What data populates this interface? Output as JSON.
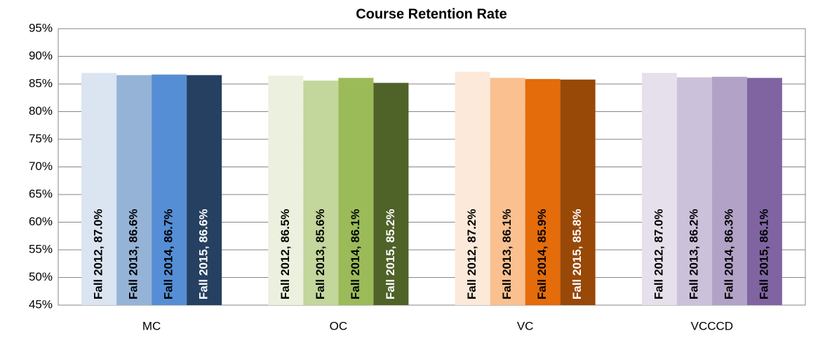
{
  "chart_data": {
    "type": "bar",
    "title": "Course Retention Rate",
    "categories": [
      "MC",
      "OC",
      "VC",
      "VCCCD"
    ],
    "series": [
      {
        "colors": [
          "#dbe5f1",
          "#ebf1de",
          "#fde9d9",
          "#e6e0ec"
        ],
        "values": [
          87.0,
          86.5,
          87.2,
          87.0
        ],
        "value_labels": [
          "Fall 2012, 87.0%",
          "Fall 2012, 86.5%",
          "Fall 2012, 87.2%",
          "Fall 2012, 87.0%"
        ]
      },
      {
        "colors": [
          "#95b3d7",
          "#c3d69b",
          "#fac090",
          "#ccc1da"
        ],
        "values": [
          86.6,
          85.6,
          86.1,
          86.2
        ],
        "value_labels": [
          "Fall 2013, 86.6%",
          "Fall 2013, 85.6%",
          "Fall 2013, 86.1%",
          "Fall 2013, 86.2%"
        ]
      },
      {
        "colors": [
          "#558ed5",
          "#9bbb59",
          "#e46c0a",
          "#b3a2c7"
        ],
        "values": [
          86.7,
          86.1,
          85.9,
          86.3
        ],
        "value_labels": [
          "Fall 2014, 86.7%",
          "Fall 2014, 86.1%",
          "Fall 2014, 85.9%",
          "Fall 2014, 86.3%"
        ]
      },
      {
        "colors": [
          "#254061",
          "#4f6228",
          "#984807",
          "#8064a2"
        ],
        "values": [
          86.6,
          85.2,
          85.8,
          86.1
        ],
        "value_labels": [
          "Fall 2015, 86.6%",
          "Fall 2015, 85.2%",
          "Fall 2015, 85.8%",
          "Fall 2015, 86.1%"
        ]
      }
    ],
    "ylim": [
      45,
      95
    ],
    "yticks": [
      {
        "value": 45,
        "label": "45%"
      },
      {
        "value": 50,
        "label": "50%"
      },
      {
        "value": 55,
        "label": "55%"
      },
      {
        "value": 60,
        "label": "60%"
      },
      {
        "value": 65,
        "label": "65%"
      },
      {
        "value": 70,
        "label": "70%"
      },
      {
        "value": 75,
        "label": "75%"
      },
      {
        "value": 80,
        "label": "80%"
      },
      {
        "value": 85,
        "label": "85%"
      },
      {
        "value": 90,
        "label": "90%"
      },
      {
        "value": 95,
        "label": "95%"
      }
    ],
    "grid": true
  }
}
